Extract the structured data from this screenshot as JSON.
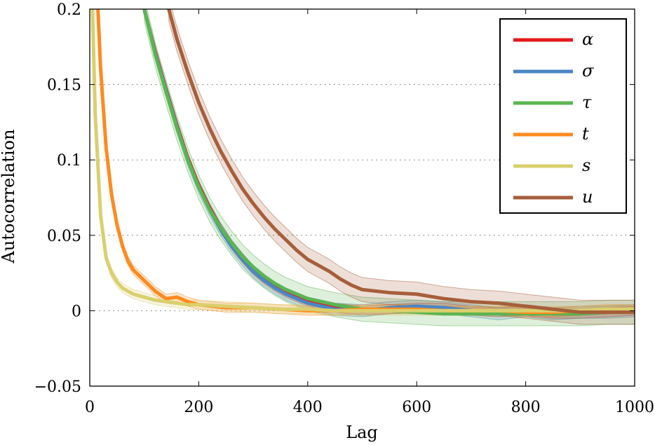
{
  "chart_data": {
    "type": "line",
    "title": "",
    "xlabel": "Lag",
    "ylabel": "Autocorrelation",
    "xlim": [
      0,
      1000
    ],
    "ylim": [
      -0.05,
      0.2
    ],
    "xticks": [
      0,
      200,
      400,
      600,
      800,
      1000
    ],
    "xtick_labels": [
      "0",
      "200",
      "400",
      "600",
      "800",
      "1000"
    ],
    "yticks": [
      -0.05,
      0,
      0.05,
      0.1,
      0.15,
      0.2
    ],
    "ytick_labels": [
      "−0.05",
      "0",
      "0.05",
      "0.1",
      "0.15",
      "0.2"
    ],
    "grid": "horizontal dotted",
    "legend_position": "top-right",
    "series": [
      {
        "name": "α",
        "color": "#e41a1c",
        "x": [
          100,
          120,
          140,
          160,
          180,
          200,
          220,
          240,
          260,
          280,
          300,
          320,
          340,
          360,
          380,
          400,
          450,
          500,
          550,
          600,
          650,
          700,
          750,
          800,
          850,
          900,
          950,
          1000
        ],
        "y": [
          0.2,
          0.172,
          0.147,
          0.123,
          0.101,
          0.083,
          0.068,
          0.055,
          0.044,
          0.035,
          0.027,
          0.021,
          0.016,
          0.012,
          0.009,
          0.006,
          0.002,
          0.0,
          0.001,
          0.002,
          0.002,
          0.0,
          -0.001,
          0.0,
          -0.002,
          -0.002,
          -0.001,
          0.0
        ],
        "band": 0.003
      },
      {
        "name": "σ",
        "color": "#4a86c5",
        "x": [
          100,
          120,
          140,
          160,
          180,
          200,
          220,
          240,
          260,
          280,
          300,
          320,
          340,
          360,
          380,
          400,
          450,
          500,
          550,
          600,
          650,
          700,
          750,
          800,
          850,
          900,
          950,
          1000
        ],
        "y": [
          0.2,
          0.171,
          0.146,
          0.122,
          0.1,
          0.082,
          0.067,
          0.054,
          0.043,
          0.034,
          0.026,
          0.02,
          0.015,
          0.011,
          0.008,
          0.005,
          0.001,
          0.0,
          0.002,
          0.003,
          0.002,
          0.0,
          -0.002,
          0.0,
          -0.002,
          -0.001,
          -0.001,
          0.0
        ],
        "band": 0.004
      },
      {
        "name": "τ",
        "color": "#5ab552",
        "x": [
          100,
          120,
          140,
          160,
          180,
          200,
          220,
          240,
          260,
          280,
          300,
          320,
          340,
          360,
          380,
          400,
          450,
          500,
          550,
          600,
          650,
          700,
          750,
          800,
          850,
          900,
          950,
          1000
        ],
        "y": [
          0.2,
          0.17,
          0.145,
          0.121,
          0.1,
          0.082,
          0.067,
          0.055,
          0.045,
          0.036,
          0.029,
          0.023,
          0.018,
          0.014,
          0.011,
          0.008,
          0.004,
          0.001,
          0.0,
          -0.001,
          -0.002,
          -0.002,
          -0.002,
          -0.002,
          -0.002,
          -0.002,
          -0.001,
          -0.001
        ],
        "band": 0.008
      },
      {
        "name": "t",
        "color": "#ff8a1f",
        "x": [
          15,
          20,
          30,
          40,
          50,
          60,
          70,
          80,
          100,
          120,
          140,
          160,
          180,
          200,
          250,
          300,
          350,
          400,
          450,
          500,
          550,
          600,
          650,
          700,
          750,
          800,
          850,
          900,
          950,
          1000
        ],
        "y": [
          0.2,
          0.16,
          0.108,
          0.077,
          0.057,
          0.043,
          0.033,
          0.027,
          0.02,
          0.013,
          0.008,
          0.009,
          0.006,
          0.004,
          0.002,
          0.002,
          0.001,
          0.0,
          0.0,
          0.001,
          0.001,
          0.001,
          0.0,
          0.0,
          0.0,
          -0.001,
          -0.001,
          0.0,
          0.001,
          0.001
        ],
        "band": 0.003
      },
      {
        "name": "s",
        "color": "#d9cf6d",
        "x": [
          5,
          10,
          20,
          30,
          40,
          50,
          60,
          70,
          80,
          100,
          120,
          140,
          160,
          180,
          200,
          250,
          300,
          350,
          400,
          450,
          500,
          550,
          600,
          650,
          700,
          750,
          800,
          850,
          900,
          950,
          1000
        ],
        "y": [
          0.2,
          0.13,
          0.063,
          0.035,
          0.025,
          0.019,
          0.015,
          0.013,
          0.011,
          0.009,
          0.007,
          0.006,
          0.005,
          0.004,
          0.004,
          0.003,
          0.002,
          0.001,
          0.001,
          0.0,
          0.0,
          0.0,
          0.0,
          0.0,
          0.0,
          0.0,
          0.0,
          0.0,
          0.0,
          0.001,
          0.001
        ],
        "band": 0.003
      },
      {
        "name": "u",
        "color": "#a65f3b",
        "x": [
          145,
          160,
          180,
          200,
          220,
          240,
          260,
          280,
          300,
          320,
          340,
          360,
          380,
          400,
          420,
          440,
          460,
          480,
          500,
          550,
          600,
          650,
          700,
          750,
          800,
          850,
          900,
          950,
          1000
        ],
        "y": [
          0.2,
          0.18,
          0.158,
          0.138,
          0.121,
          0.106,
          0.093,
          0.081,
          0.071,
          0.062,
          0.054,
          0.047,
          0.04,
          0.034,
          0.03,
          0.026,
          0.021,
          0.017,
          0.014,
          0.012,
          0.011,
          0.008,
          0.006,
          0.005,
          0.003,
          0.001,
          -0.001,
          -0.001,
          -0.001
        ],
        "band": 0.008
      }
    ]
  }
}
